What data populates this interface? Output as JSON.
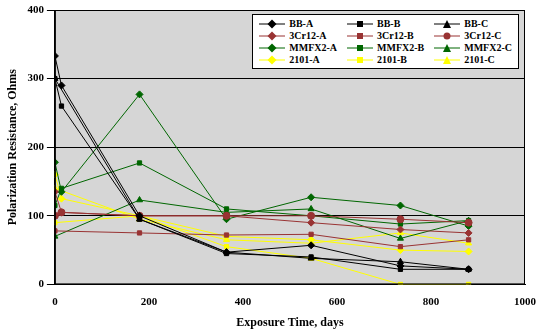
{
  "chart_data": {
    "type": "line",
    "x_label": "Exposure Time, days",
    "y_label": "Polarization Resistance, Ohms",
    "xlim": [
      0,
      1000
    ],
    "xticks": [
      0,
      200,
      400,
      600,
      800,
      1000
    ],
    "ylim": [
      0,
      400
    ],
    "yticks": [
      0,
      100,
      200,
      300,
      400
    ],
    "grid": true,
    "legend": "upper right",
    "series": [
      {
        "name": "BB-A",
        "color": "#000000",
        "marker": "diamond",
        "x": [
          0,
          14,
          180,
          365,
          545,
          735,
          880
        ],
        "values": [
          333,
          290,
          100,
          47,
          57,
          27,
          22
        ]
      },
      {
        "name": "BB-B",
        "color": "#000000",
        "marker": "square",
        "x": [
          0,
          14,
          180,
          365,
          545,
          735,
          880
        ],
        "values": [
          300,
          260,
          95,
          45,
          40,
          22,
          22
        ]
      },
      {
        "name": "BB-C",
        "color": "#000000",
        "marker": "triangle",
        "x": [
          0,
          180,
          365,
          545,
          735,
          880
        ],
        "values": [
          300,
          95,
          47,
          38,
          33,
          22
        ]
      },
      {
        "name": "3Cr12-A",
        "color": "#993333",
        "marker": "diamond",
        "x": [
          0,
          14,
          180,
          365,
          545,
          735,
          880
        ],
        "values": [
          135,
          105,
          100,
          100,
          90,
          80,
          75
        ]
      },
      {
        "name": "3Cr12-B",
        "color": "#993333",
        "marker": "square",
        "x": [
          0,
          180,
          365,
          545,
          735,
          880
        ],
        "values": [
          78,
          75,
          72,
          73,
          55,
          65
        ]
      },
      {
        "name": "3Cr12-C",
        "color": "#993333",
        "marker": "circle",
        "x": [
          0,
          14,
          180,
          365,
          545,
          735,
          880
        ],
        "values": [
          100,
          105,
          100,
          100,
          100,
          95,
          90
        ]
      },
      {
        "name": "MMFX2-A",
        "color": "#006600",
        "marker": "diamond",
        "x": [
          0,
          14,
          180,
          365,
          545,
          735,
          880
        ],
        "values": [
          178,
          135,
          277,
          95,
          127,
          115,
          85
        ]
      },
      {
        "name": "MMFX2-B",
        "color": "#006600",
        "marker": "square",
        "x": [
          0,
          14,
          180,
          365,
          545,
          735,
          880
        ],
        "values": [
          115,
          140,
          177,
          110,
          100,
          88,
          93
        ]
      },
      {
        "name": "MMFX2-C",
        "color": "#006600",
        "marker": "triangle",
        "x": [
          0,
          180,
          365,
          545,
          735,
          880
        ],
        "values": [
          70,
          123,
          105,
          110,
          67,
          93
        ]
      },
      {
        "name": "2101-A",
        "color": "#ffff00",
        "marker": "diamond",
        "x": [
          0,
          14,
          180,
          365,
          545,
          735,
          880
        ],
        "values": [
          160,
          125,
          100,
          70,
          65,
          50,
          48
        ]
      },
      {
        "name": "2101-B",
        "color": "#ffff00",
        "marker": "square",
        "x": [
          0,
          180,
          365,
          545,
          735,
          880
        ],
        "values": [
          90,
          100,
          55,
          38,
          0,
          0
        ]
      },
      {
        "name": "2101-C",
        "color": "#ffff00",
        "marker": "triangle",
        "x": [
          0,
          180,
          365,
          545,
          735,
          880
        ],
        "values": [
          140,
          95,
          65,
          60,
          75,
          60
        ]
      }
    ]
  }
}
